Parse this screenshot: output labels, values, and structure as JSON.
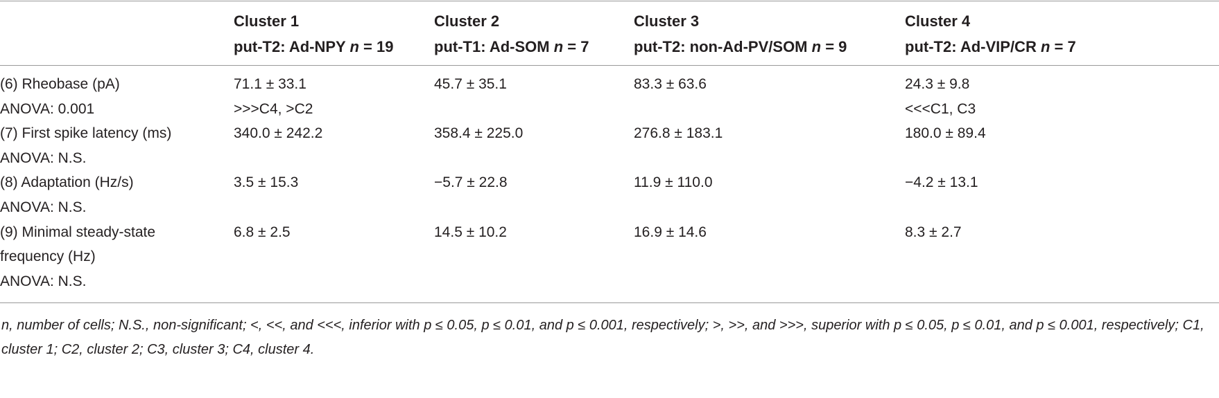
{
  "table": {
    "columns": [
      {
        "title": "Cluster 1",
        "subtitle": "put-T2: Ad-NPY",
        "n": "n",
        "count": "= 19"
      },
      {
        "title": "Cluster 2",
        "subtitle": "put-T1: Ad-SOM",
        "n": "n",
        "count": "= 7"
      },
      {
        "title": "Cluster 3",
        "subtitle": "put-T2: non-Ad-PV/SOM",
        "n": "n",
        "count": "= 9"
      },
      {
        "title": "Cluster 4",
        "subtitle": "put-T2: Ad-VIP/CR",
        "n": "n",
        "count": "= 7"
      }
    ],
    "rows": [
      {
        "label": "(6) Rheobase (pA)",
        "stat": "ANOVA: 0.001",
        "values": [
          "71.1 ± 33.1",
          "45.7 ± 35.1",
          "83.3 ± 63.6",
          "24.3 ± 9.8"
        ],
        "posthoc": [
          ">>>C4, >C2",
          null,
          null,
          "<<<C1, C3"
        ]
      },
      {
        "label": "(7) First spike latency (ms)",
        "stat": "ANOVA: N.S.",
        "values": [
          "340.0 ± 242.2",
          "358.4 ± 225.0",
          "276.8 ± 183.1",
          "180.0 ± 89.4"
        ]
      },
      {
        "label": "(8) Adaptation (Hz/s)",
        "stat": "ANOVA: N.S.",
        "values": [
          "3.5 ± 15.3",
          "−5.7 ± 22.8",
          "11.9 ± 110.0",
          "−4.2 ± 13.1"
        ]
      },
      {
        "label": "(9) Minimal steady-state frequency (Hz)",
        "stat": "ANOVA: N.S.",
        "values": [
          "6.8 ± 2.5",
          "14.5 ± 10.2",
          "16.9 ± 14.6",
          "8.3 ± 2.7"
        ]
      }
    ],
    "footnote": "n, number of cells; N.S., non-significant; <, <<, and <<<, inferior with p ≤ 0.05, p ≤ 0.01, and p ≤ 0.001, respectively; >, >>, and >>>, superior with p ≤ 0.05, p ≤ 0.01, and p ≤ 0.001, respectively; C1, cluster 1; C2, cluster 2; C3, cluster 3; C4, cluster 4."
  }
}
